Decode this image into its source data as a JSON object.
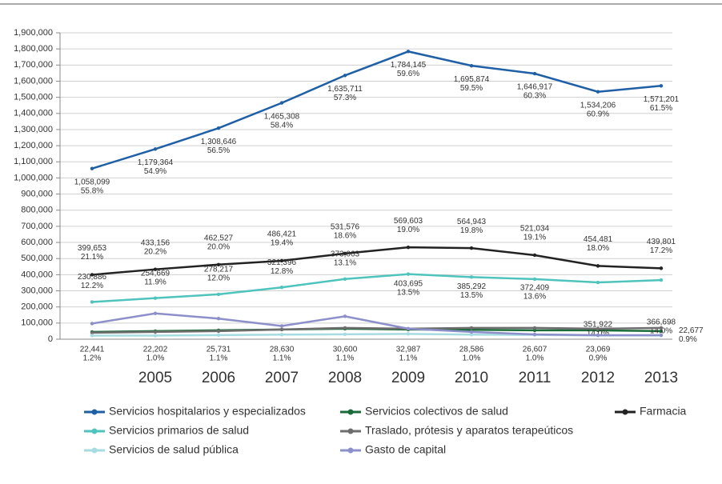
{
  "chart_data": {
    "type": "line",
    "categories": [
      null,
      "2005",
      "2006",
      "2007",
      "2008",
      "2009",
      "2010",
      "2011",
      "2012",
      "2013"
    ],
    "ylim": [
      0,
      1900000
    ],
    "yticks": [
      {
        "value": 0,
        "label": "0"
      },
      {
        "value": 100000,
        "label": "100,000"
      },
      {
        "value": 200000,
        "label": "200,000"
      },
      {
        "value": 300000,
        "label": "300,000"
      },
      {
        "value": 400000,
        "label": "400,000"
      },
      {
        "value": 500000,
        "label": "500,000"
      },
      {
        "value": 600000,
        "label": "600,000"
      },
      {
        "value": 700000,
        "label": "700,000"
      },
      {
        "value": 800000,
        "label": "800,000"
      },
      {
        "value": 900000,
        "label": "900,000"
      },
      {
        "value": 1000000,
        "label": "1,000,000"
      },
      {
        "value": 1100000,
        "label": "1,100,000"
      },
      {
        "value": 1200000,
        "label": "1,200,000"
      },
      {
        "value": 1300000,
        "label": "1,300,000"
      },
      {
        "value": 1400000,
        "label": "1,400,000"
      },
      {
        "value": 1500000,
        "label": "1,500,000"
      },
      {
        "value": 1600000,
        "label": "1,600,000"
      },
      {
        "value": 1700000,
        "label": "1,700,000"
      },
      {
        "value": 1800000,
        "label": "1,800,000"
      },
      {
        "value": 1900000,
        "label": "1,900,000"
      }
    ],
    "grid": true,
    "legend": "bottom",
    "series": [
      {
        "name": "Servicios hospitalarios y especializados",
        "color": "#1f5fa6",
        "values": [
          1058099,
          1179364,
          1308646,
          1465308,
          1635711,
          1784145,
          1695874,
          1646917,
          1534206,
          1571201
        ],
        "value_labels": [
          "1,058,099",
          "1,179,364",
          "1,308,646",
          "1,465,308",
          "1,635,711",
          "1,784,145",
          "1,695,874",
          "1,646,917",
          "1,534,206",
          "1,571,201"
        ],
        "share_labels": [
          "55.8%",
          "54.9%",
          "56.5%",
          "58.4%",
          "57.3%",
          "59.6%",
          "59.5%",
          "60.3%",
          "60.9%",
          "61.5%"
        ]
      },
      {
        "name": "Servicios colectivos de salud",
        "color": "#1b6b3a",
        "values": [
          45000,
          50000,
          55000,
          60000,
          65000,
          60000,
          58000,
          55000,
          55000,
          50000
        ]
      },
      {
        "name": "Farmacia",
        "color": "#222222",
        "values": [
          399653,
          433156,
          462527,
          486421,
          531576,
          569603,
          564943,
          521034,
          454481,
          439801
        ],
        "value_labels": [
          "399,653",
          "433,156",
          "462,527",
          "486,421",
          "531,576",
          "569,603",
          "564,943",
          "521,034",
          "454,481",
          "439,801"
        ],
        "share_labels": [
          "21.1%",
          "20.2%",
          "20.0%",
          "19.4%",
          "18.6%",
          "19.0%",
          "19.8%",
          "19.1%",
          "18.0%",
          "17.2%"
        ]
      },
      {
        "name": "Servicios primarios de salud",
        "color": "#4fc3bd",
        "values": [
          230886,
          254669,
          278217,
          321396,
          373063,
          403695,
          385292,
          372409,
          351922,
          366698
        ],
        "value_labels": [
          "230,886",
          "254,669",
          "278,217",
          "321,396",
          "373,063",
          "403,695",
          "385,292",
          "372,409",
          "351,922",
          "366,698"
        ],
        "share_labels": [
          "12.2%",
          "11.9%",
          "12.0%",
          "12.8%",
          "13.1%",
          "13.5%",
          "13.5%",
          "13.6%",
          "14.0%",
          "14.0%"
        ]
      },
      {
        "name": "Traslado, prótesis y aparatos terapeúticos",
        "color": "#6d6d6d",
        "values": [
          40000,
          45000,
          50000,
          60000,
          70000,
          65000,
          70000,
          70000,
          65000,
          70000
        ]
      },
      {
        "name": "Servicios de salud pública",
        "color": "#a6dbe2",
        "values": [
          22441,
          22202,
          25731,
          28630,
          30600,
          32987,
          28586,
          26607,
          23069,
          22677
        ],
        "value_labels": [
          "22,441",
          "22,202",
          "25,731",
          "28,630",
          "30,600",
          "32,987",
          "28,586",
          "26,607",
          "23,069",
          "22,677"
        ],
        "share_labels": [
          "1.2%",
          "1.0%",
          "1.1%",
          "1.1%",
          "1.1%",
          "1.1%",
          "1.0%",
          "1.0%",
          "0.9%",
          "0.9%"
        ]
      },
      {
        "name": "Gasto de capital",
        "color": "#8c8fc9",
        "values": [
          97000,
          160000,
          128000,
          82000,
          142000,
          65000,
          45000,
          30000,
          25000,
          25000
        ]
      }
    ]
  }
}
